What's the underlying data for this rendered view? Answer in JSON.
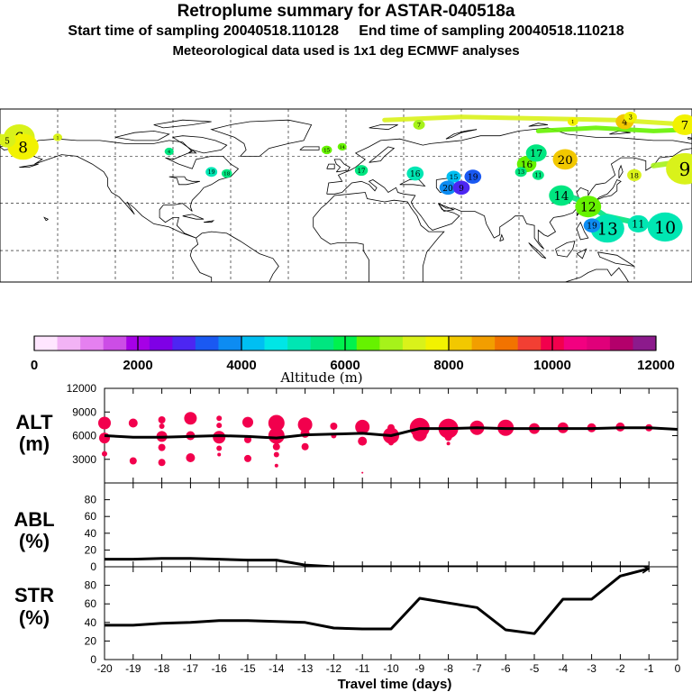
{
  "header": {
    "title": "Retroplume summary for ASTAR-040518a",
    "start": "Start time of sampling 20040518.110128",
    "end": "End time of sampling 20040518.110218",
    "met": "Meteorological data used is 1x1 deg ECMWF analyses"
  },
  "colorbar": {
    "title": "Altitude  (m)",
    "colors": [
      "#ffe6ff",
      "#f2b3f5",
      "#e580f0",
      "#cc4de6",
      "#a600e6",
      "#7f00e6",
      "#4d26f2",
      "#1a59f2",
      "#0d8cf2",
      "#00bff2",
      "#00e6e6",
      "#00e6b3",
      "#00e680",
      "#00f24d",
      "#66f200",
      "#a6f21a",
      "#d9f21a",
      "#f2f200",
      "#f2c800",
      "#f29e00",
      "#f27300",
      "#f23f33",
      "#f2004d",
      "#f20080",
      "#e0007a",
      "#b3006b",
      "#8c1a8c"
    ],
    "tick_labels": [
      "0",
      "2000",
      "4000",
      "6000",
      "8000",
      "10000",
      "12000"
    ],
    "range": [
      0,
      12000
    ]
  },
  "map": {
    "labels": [
      {
        "t": "6",
        "c": "#d9f21a",
        "lon": -170,
        "lat": 72,
        "s": 2.4
      },
      {
        "t": "8",
        "c": "#f2f200",
        "lon": -168,
        "lat": 66,
        "s": 2.4
      },
      {
        "t": "5",
        "c": "#d9f21a",
        "lon": -178,
        "lat": 70,
        "s": 1.3
      },
      {
        "t": "1",
        "c": "#d9f21a",
        "lon": -150,
        "lat": 72,
        "s": 0.7
      },
      {
        "t": "19",
        "c": "#00e6b3",
        "lon": -70,
        "lat": 50,
        "s": 0.9
      },
      {
        "t": "18",
        "c": "#00e680",
        "lon": -62,
        "lat": 49,
        "s": 0.8
      },
      {
        "t": "4",
        "c": "#00e680",
        "lon": -92,
        "lat": 63,
        "s": 0.7
      },
      {
        "t": "15",
        "c": "#66f200",
        "lon": -10,
        "lat": 64,
        "s": 0.8
      },
      {
        "t": "14",
        "c": "#66f200",
        "lon": -2,
        "lat": 66,
        "s": 0.7
      },
      {
        "t": "17",
        "c": "#00e680",
        "lon": 8,
        "lat": 51,
        "s": 1.0
      },
      {
        "t": "16",
        "c": "#00e6b3",
        "lon": 36,
        "lat": 49,
        "s": 1.3
      },
      {
        "t": "15",
        "c": "#00bff2",
        "lon": 56,
        "lat": 47,
        "s": 1.1
      },
      {
        "t": "20",
        "c": "#0d8cf2",
        "lon": 53,
        "lat": 40,
        "s": 1.3
      },
      {
        "t": "9",
        "c": "#4d26f2",
        "lon": 60,
        "lat": 40,
        "s": 1.3
      },
      {
        "t": "19",
        "c": "#1a59f2",
        "lon": 66,
        "lat": 47,
        "s": 1.3
      },
      {
        "t": "7",
        "c": "#a6f21a",
        "lon": 38,
        "lat": 80,
        "s": 0.9
      },
      {
        "t": "16",
        "c": "#66f200",
        "lon": 94,
        "lat": 55,
        "s": 1.5
      },
      {
        "t": "17",
        "c": "#00e680",
        "lon": 99,
        "lat": 62,
        "s": 1.6
      },
      {
        "t": "20",
        "c": "#f2c800",
        "lon": 114,
        "lat": 58,
        "s": 1.9
      },
      {
        "t": "13",
        "c": "#00e680",
        "lon": 91,
        "lat": 50,
        "s": 0.9
      },
      {
        "t": "11",
        "c": "#00e680",
        "lon": 100,
        "lat": 48,
        "s": 0.9
      },
      {
        "t": "14",
        "c": "#00e680",
        "lon": 112,
        "lat": 35,
        "s": 1.9
      },
      {
        "t": "12",
        "c": "#66f200",
        "lon": 126,
        "lat": 28,
        "s": 2.0
      },
      {
        "t": "13",
        "c": "#00e6b3",
        "lon": 136,
        "lat": 14,
        "s": 2.6
      },
      {
        "t": "10",
        "c": "#00e6b3",
        "lon": 166,
        "lat": 15,
        "s": 2.7
      },
      {
        "t": "11",
        "c": "#00e6b3",
        "lon": 152,
        "lat": 17,
        "s": 1.6
      },
      {
        "t": "19",
        "c": "#0d8cf2",
        "lon": 128,
        "lat": 16,
        "s": 1.3
      },
      {
        "t": "18",
        "c": "#d9f21a",
        "lon": 150,
        "lat": 48,
        "s": 1.1
      },
      {
        "t": "7",
        "c": "#f2f200",
        "lon": 178,
        "lat": 80,
        "s": 1.9
      },
      {
        "t": "9",
        "c": "#d9f21a",
        "lon": 178,
        "lat": 52,
        "s": 2.9
      },
      {
        "t": "4",
        "c": "#f2c800",
        "lon": 145,
        "lat": 82,
        "s": 1.4
      },
      {
        "t": "3",
        "c": "#f2f200",
        "lon": 148,
        "lat": 85,
        "s": 1.0
      },
      {
        "t": "1",
        "c": "#f2f200",
        "lon": 118,
        "lat": 82,
        "s": 0.8
      }
    ]
  },
  "panels": {
    "alt": {
      "label_top": "ALT",
      "label_bottom": "(m)"
    },
    "abl": {
      "label_top": "ABL",
      "label_bottom": "(%)"
    },
    "str": {
      "label_top": "STR",
      "label_bottom": "(%)"
    }
  },
  "chart_data": [
    {
      "type": "line",
      "name": "ALT",
      "ylabel": "ALT (m)",
      "ylim": [
        0,
        12000
      ],
      "yticks": [
        3000,
        6000,
        9000,
        12000
      ],
      "x": [
        -20,
        -19,
        -18,
        -17,
        -16,
        -15,
        -14,
        -13,
        -12,
        -11,
        -10,
        -9,
        -8,
        -7,
        -6,
        -5,
        -4,
        -3,
        -2,
        -1,
        0
      ],
      "values": [
        6000,
        5800,
        5800,
        5900,
        6000,
        5900,
        5700,
        6100,
        6200,
        6300,
        6000,
        6900,
        6900,
        7000,
        6900,
        6900,
        6900,
        6900,
        7000,
        7000,
        6800
      ],
      "points": [
        [
          -20,
          7600,
          7
        ],
        [
          -20,
          5700,
          6
        ],
        [
          -20,
          3700,
          3
        ],
        [
          -19,
          7600,
          5
        ],
        [
          -19,
          2800,
          4
        ],
        [
          -18,
          8000,
          4
        ],
        [
          -18,
          7200,
          3
        ],
        [
          -18,
          5900,
          6
        ],
        [
          -18,
          4500,
          4
        ],
        [
          -18,
          2600,
          4
        ],
        [
          -17,
          8200,
          7
        ],
        [
          -17,
          6000,
          5
        ],
        [
          -17,
          3200,
          5
        ],
        [
          -16,
          8200,
          3
        ],
        [
          -16,
          7300,
          3
        ],
        [
          -16,
          5800,
          7
        ],
        [
          -16,
          4400,
          3
        ],
        [
          -16,
          3600,
          2
        ],
        [
          -15,
          7700,
          6
        ],
        [
          -15,
          5500,
          4
        ],
        [
          -15,
          3100,
          4
        ],
        [
          -14,
          7600,
          9
        ],
        [
          -14,
          6000,
          9
        ],
        [
          -14,
          8000,
          4
        ],
        [
          -14,
          4600,
          4
        ],
        [
          -14,
          3600,
          3
        ],
        [
          -14,
          2200,
          2
        ],
        [
          -13,
          7400,
          8
        ],
        [
          -13,
          6300,
          5
        ],
        [
          -13,
          4600,
          4
        ],
        [
          -12,
          7200,
          4
        ],
        [
          -12,
          6000,
          3
        ],
        [
          -11,
          7100,
          8
        ],
        [
          -11,
          5300,
          5
        ],
        [
          -11,
          1300,
          1
        ],
        [
          -10,
          7000,
          4
        ],
        [
          -10,
          6000,
          9
        ],
        [
          -10,
          5100,
          3
        ],
        [
          -9,
          7000,
          11
        ],
        [
          -9,
          6200,
          8
        ],
        [
          -8,
          6900,
          11
        ],
        [
          -8,
          5800,
          4
        ],
        [
          -8,
          5000,
          2
        ],
        [
          -7,
          7000,
          8
        ],
        [
          -6,
          7000,
          9
        ],
        [
          -5,
          6900,
          6
        ],
        [
          -4,
          7000,
          6
        ],
        [
          -3,
          7000,
          5
        ],
        [
          -2,
          7100,
          5
        ],
        [
          -1,
          7000,
          4
        ]
      ]
    },
    {
      "type": "line",
      "name": "ABL",
      "ylabel": "ABL (%)",
      "ylim": [
        0,
        100
      ],
      "yticks": [
        0,
        20,
        40,
        60,
        80
      ],
      "x": [
        -20,
        -19,
        -18,
        -17,
        -16,
        -15,
        -14,
        -13,
        -12,
        -11,
        -10,
        -9,
        -8,
        -7,
        -6,
        -5,
        -4,
        -3,
        -2,
        -1
      ],
      "values": [
        9,
        9,
        10,
        10,
        9,
        8,
        8,
        2,
        0,
        0,
        0,
        0,
        0,
        0,
        0,
        0,
        0,
        0,
        0,
        0
      ]
    },
    {
      "type": "line",
      "name": "STR",
      "ylabel": "STR (%)",
      "xlabel": "Travel time (days)",
      "ylim": [
        0,
        100
      ],
      "yticks": [
        0,
        20,
        40,
        60,
        80
      ],
      "x": [
        -20,
        -19,
        -18,
        -17,
        -16,
        -15,
        -14,
        -13,
        -12,
        -11,
        -10,
        -9,
        -8,
        -7,
        -6,
        -5,
        -4,
        -3,
        -2,
        -1
      ],
      "values": [
        37,
        37,
        39,
        40,
        42,
        42,
        41,
        40,
        34,
        33,
        33,
        66,
        61,
        56,
        32,
        28,
        65,
        65,
        90,
        98
      ],
      "xticks": [
        "-20",
        "-19",
        "-18",
        "-17",
        "-16",
        "-15",
        "-14",
        "-13",
        "-12",
        "-11",
        "-10",
        "-9",
        "-8",
        "-7",
        "-6",
        "-5",
        "-4",
        "-3",
        "-2",
        "-1",
        "0"
      ]
    }
  ]
}
